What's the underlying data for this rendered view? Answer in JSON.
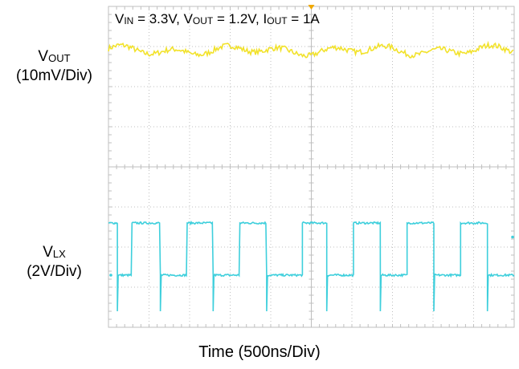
{
  "chart_data": {
    "type": "line",
    "title_parts": [
      {
        "sym": "V",
        "sub": "IN",
        "rest": " = 3.3V, "
      },
      {
        "sym": "V",
        "sub": "OUT",
        "rest": " = 1.2V, "
      },
      {
        "sym": "I",
        "sub": "OUT",
        "rest": " = 1A"
      }
    ],
    "xlabel": "Time (500ns/Div)",
    "grid": true,
    "divisions": {
      "x": 10,
      "y": 8
    },
    "colors": {
      "background": "#ffffff",
      "grid": "#bfbfbf",
      "vout": "#f2e22b",
      "vlx": "#3ecfdc",
      "marker": "#f0a800"
    },
    "series": [
      {
        "name_sym": "V",
        "name_sub": "OUT",
        "scale": "(10mV/Div)",
        "center_div": 6.9,
        "ripple_div": 0.15
      },
      {
        "name_sym": "V",
        "name_sub": "LX",
        "scale": "(2V/Div)",
        "high_div": 2.6,
        "low_div": 1.3,
        "edges_div": [
          0.22,
          0.58,
          1.28,
          1.94,
          2.58,
          3.24,
          3.9,
          4.78,
          5.38,
          6.04,
          6.7,
          7.36,
          8.02,
          8.68,
          9.34,
          10.0
        ]
      }
    ]
  }
}
